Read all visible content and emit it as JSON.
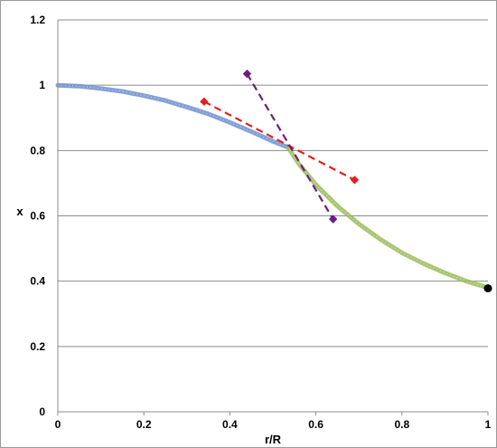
{
  "chart_data": {
    "type": "line",
    "xlabel": "r/R",
    "ylabel": "x",
    "xlim": [
      0,
      1
    ],
    "ylim": [
      0,
      1.2
    ],
    "x_ticks": [
      "0",
      "0.2",
      "0.4",
      "0.6",
      "0.8",
      "1"
    ],
    "y_ticks": [
      "0",
      "0.2",
      "0.4",
      "0.6",
      "0.8",
      "1",
      "1.2"
    ],
    "grid": "horizontal",
    "legend": "none",
    "series": [
      {
        "color": "#6e8fcf",
        "style": "dense-markers",
        "x": [
          0,
          0.05,
          0.1,
          0.15,
          0.2,
          0.25,
          0.3,
          0.35,
          0.4,
          0.45,
          0.5,
          0.535
        ],
        "y": [
          1.0,
          0.997,
          0.99,
          0.981,
          0.968,
          0.953,
          0.933,
          0.912,
          0.886,
          0.858,
          0.828,
          0.81
        ]
      },
      {
        "color": "#9bbb59",
        "style": "dense-markers",
        "x": [
          0.535,
          0.56,
          0.6,
          0.65,
          0.7,
          0.75,
          0.8,
          0.85,
          0.9,
          0.95,
          1.0
        ],
        "y": [
          0.81,
          0.76,
          0.695,
          0.63,
          0.575,
          0.528,
          0.487,
          0.454,
          0.425,
          0.4,
          0.38
        ]
      },
      {
        "color": "#e3211c",
        "style": "dashed",
        "marker": "diamond",
        "x": [
          0.34,
          0.69
        ],
        "y": [
          0.95,
          0.71
        ]
      },
      {
        "color": "#6a1f7e",
        "style": "dashed",
        "marker": "diamond",
        "x": [
          0.44,
          0.64
        ],
        "y": [
          1.035,
          0.59
        ]
      },
      {
        "color": "#000000",
        "style": "point",
        "x": [
          1.0
        ],
        "y": [
          0.378
        ]
      }
    ]
  }
}
